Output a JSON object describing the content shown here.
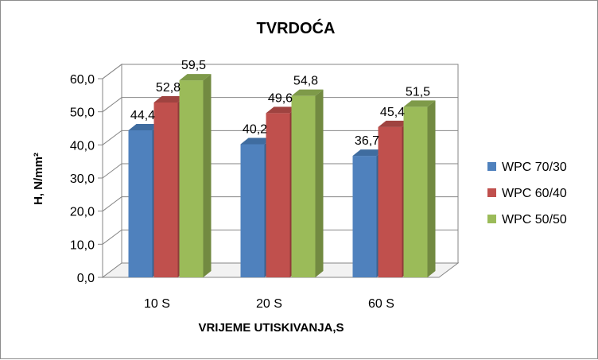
{
  "chart_data": {
    "type": "bar",
    "title": "TVRDOĆA",
    "xlabel": "VRIJEME UTISKIVANJA,S",
    "ylabel": "H, N/mm²",
    "categories": [
      "10 S",
      "20 S",
      "60 S"
    ],
    "series": [
      {
        "name": "WPC 70/30",
        "values": [
          44.4,
          40.2,
          36.7
        ],
        "labels": [
          "44,4",
          "40,2",
          "36,7"
        ],
        "color": "#4f81bd",
        "side": "#3a6290",
        "top": "#3f6c9f"
      },
      {
        "name": "WPC 60/40",
        "values": [
          52.8,
          49.6,
          45.4
        ],
        "labels": [
          "52,8",
          "49,6",
          "45,4"
        ],
        "color": "#c0504d",
        "side": "#8f3b39",
        "top": "#9f4340"
      },
      {
        "name": "WPC 50/50",
        "values": [
          59.5,
          54.8,
          51.5
        ],
        "labels": [
          "59,5",
          "54,8",
          "51,5"
        ],
        "color": "#9bbb59",
        "side": "#728a41",
        "top": "#7e9a49"
      }
    ],
    "ylim": [
      0,
      60
    ],
    "yticks": [
      "0,0",
      "10,0",
      "20,0",
      "30,0",
      "40,0",
      "50,0",
      "60,0"
    ],
    "grid": true,
    "legend": "right",
    "style": "3d-clustered-column"
  }
}
